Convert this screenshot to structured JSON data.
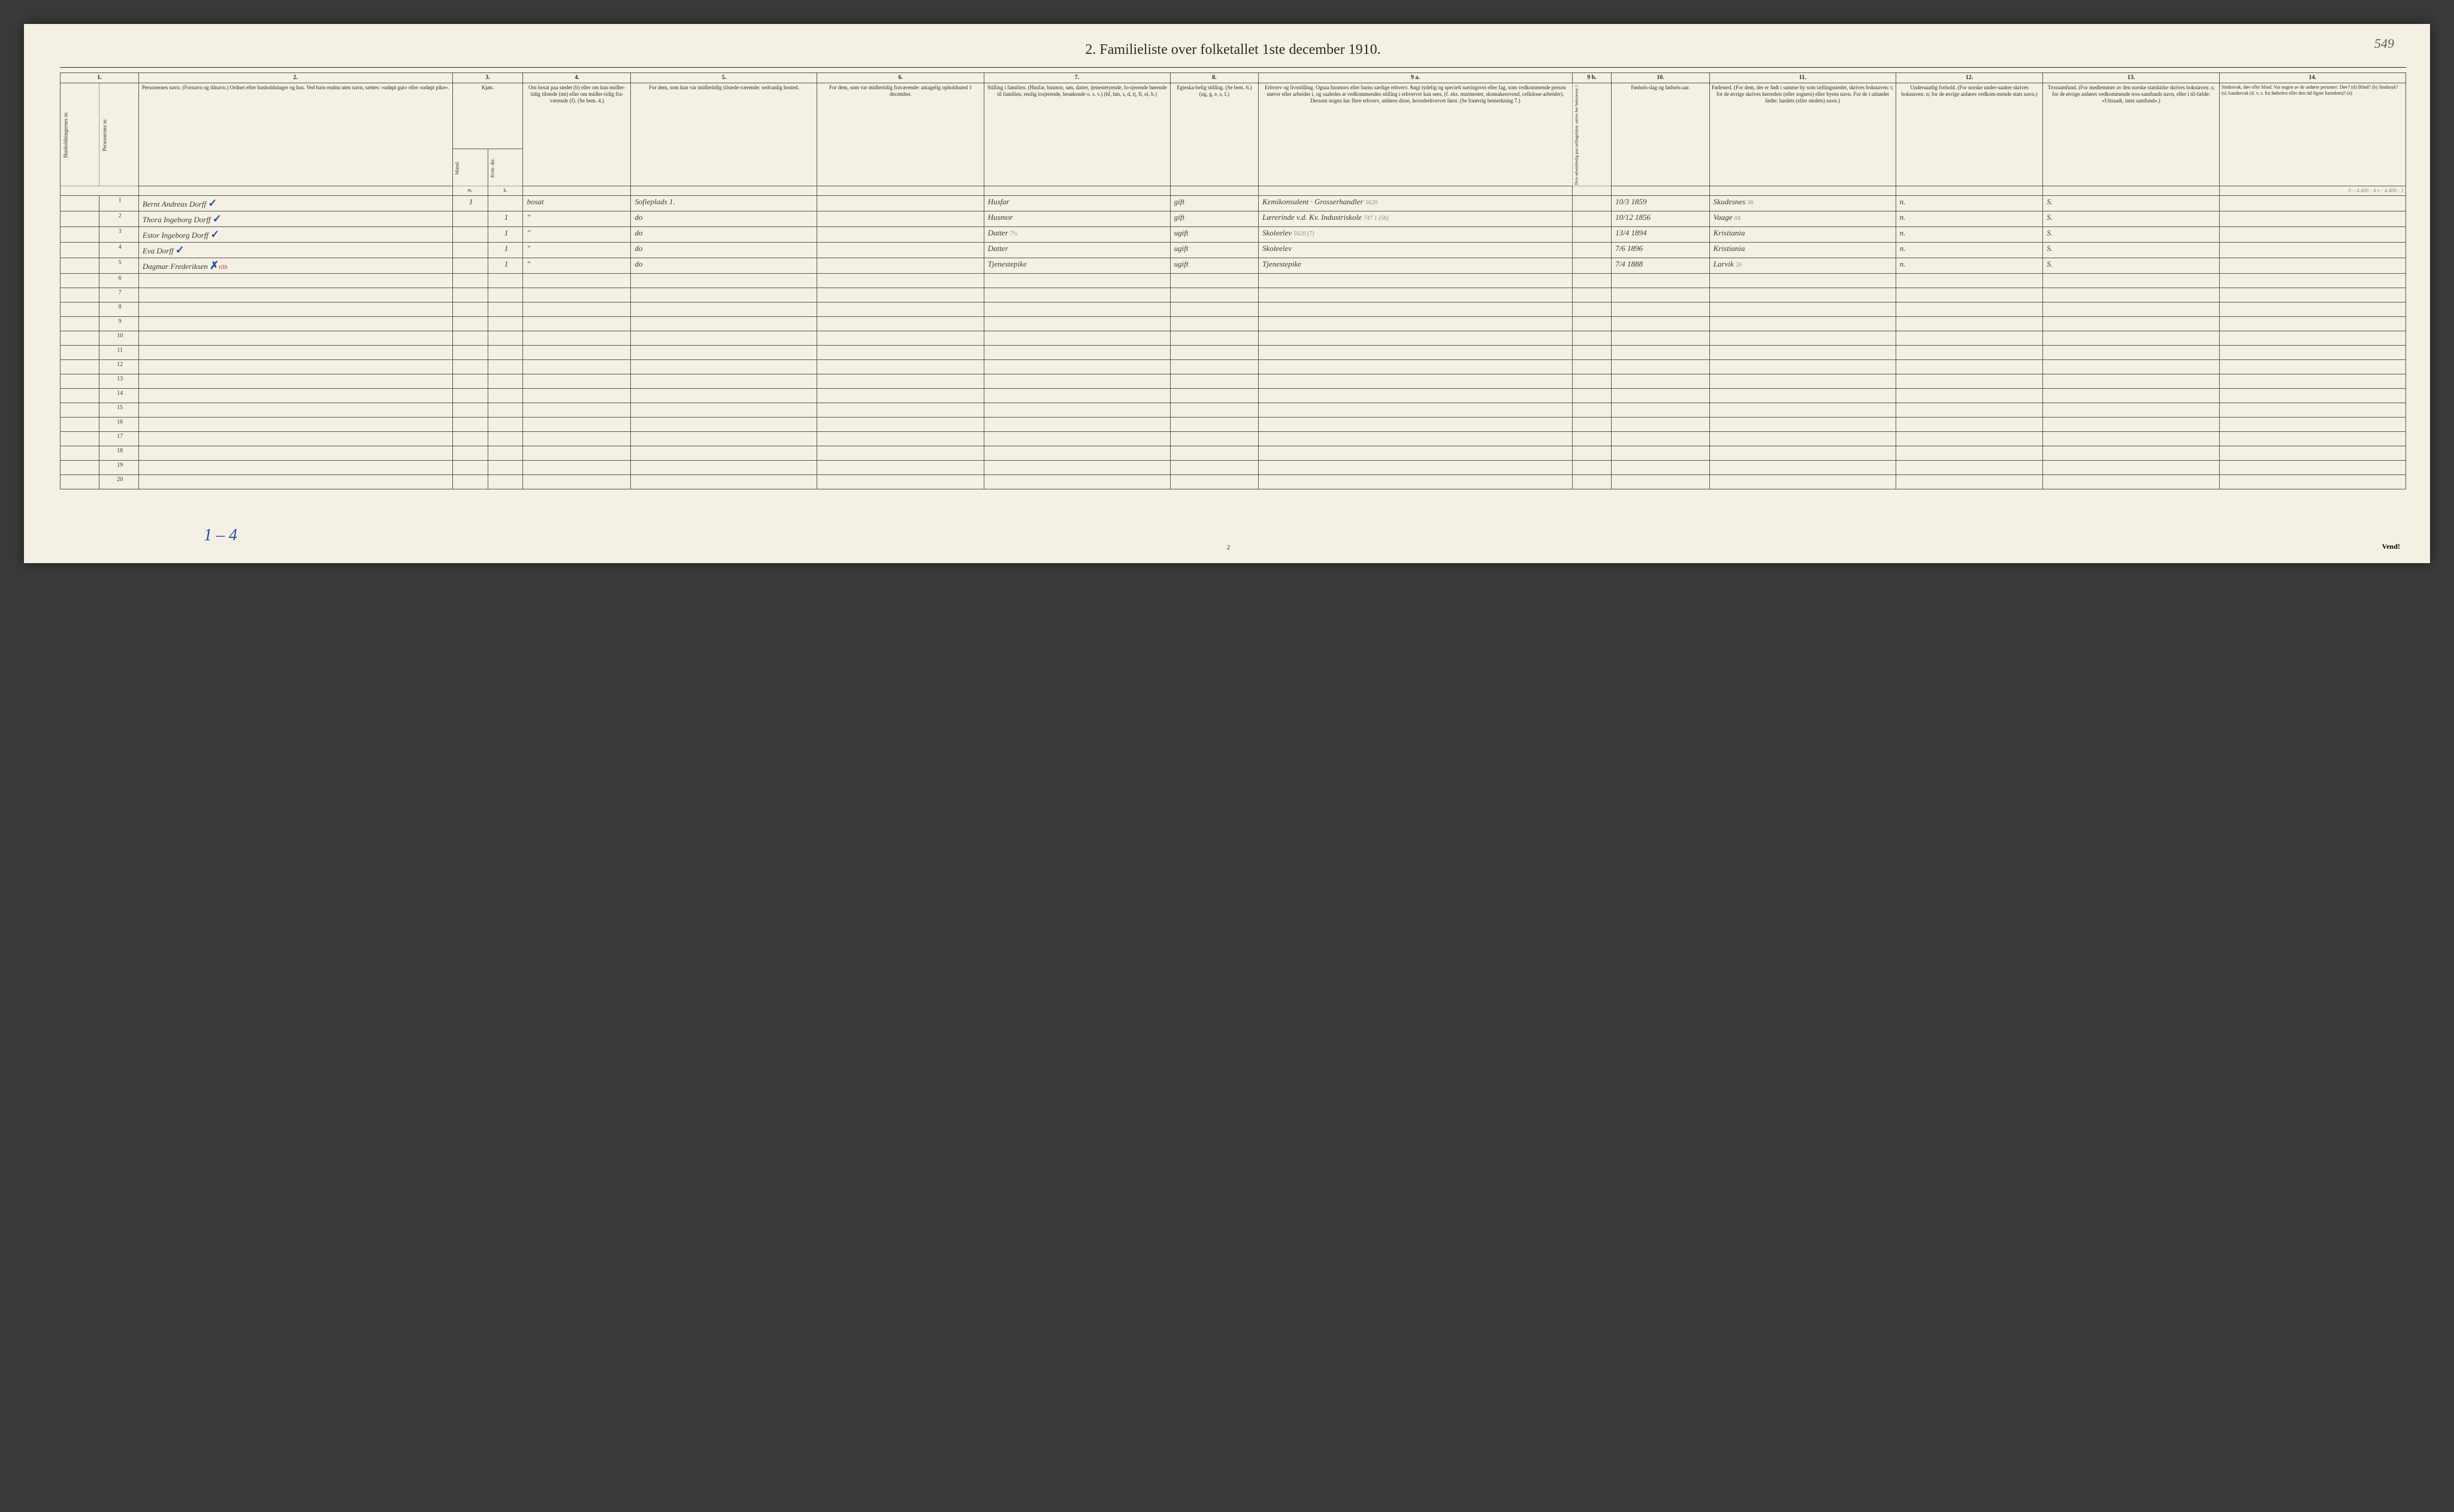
{
  "corner_note": "549",
  "title": "2.  Familieliste over folketallet 1ste december 1910.",
  "bottom_note": "1 – 4",
  "page_num": "2",
  "vend": "Vend!",
  "col_numbers": [
    "1.",
    "2.",
    "3.",
    "4.",
    "5.",
    "6.",
    "7.",
    "8.",
    "9 a.",
    "9 b.",
    "10.",
    "11.",
    "12.",
    "13.",
    "14."
  ],
  "headers": {
    "c2": "Personernes navn.\n(Fornavn og tilnavn.)\nOrdnet efter husholdninger og hus.\nVed barn endnu uten navn, sættes: «udøpt gut» eller «udøpt pike».",
    "c3": "Kjøn.",
    "c3_sub": [
      "Mænd.",
      "Kvin-\nder."
    ],
    "c3_mk": [
      "m.",
      "k."
    ],
    "c4": "Om bosat paa stedet (b) eller om kun midler-tidig tilstede (mt) eller om midler-tidig fra-værende (f). (Se bem. 4.)",
    "c5": "For dem, som kun var midlertidig tilstede-værende:\nsedvanlig bosted.",
    "c6": "For dem, som var midlertidig fraværende:\nantagelig opholdssted 1 december.",
    "c7": "Stilling i familien.\n(Husfar, husmor, søn, datter, tjenestetyende, lo-sjerende hørende til familien, enslig losjerende, besøkende o. s. v.)\n(hf, hm, s, d, tj, fl, el, b.)",
    "c8": "Egteska-belig stilling.\n(Se bem. 6.)\n(ug, g, e, s, f.)",
    "c9": "Erhverv og livsstilling.\nOgsaa husmors eller barns særlige erhverv.\nAngi tydelig og specielt næringsvei eller fag, som vedkommende person utøver eller arbeider i, og saaledes at vedkommendes stilling i erhvervet kan sees, (f. eks. murmester, skomakersvend, cellulose-arbeider). Dersom nogen har flere erhverv, anføres disse, hovederhvervet først.\n(Se forøvrig bemerkning 7.)",
    "c9b": "Hvis arbeidsledig paa tællingstiden, sættes her bokstaven: l.",
    "c10": "Fødsels-dag og fødsels-aar.",
    "c11": "Fødested.\n(For dem, der er født i samme by som tællingsstedet, skrives bokstaven: t; for de øvrige skrives herredets (eller sognets) eller byens navn. For de i utlandet fødte: landets (eller stedets) navn.)",
    "c12": "Undersaatlig forhold.\n(For norske under-saatter skrives bokstaven: n; for de øvrige anføres vedkom-mende stats navn.)",
    "c13": "Trossamfund.\n(For medlemmer av den norske statskirke skrives bokstaven: s; for de øvrige anføres vedkommende tros-samfunds navn, eller i til-fælde: «Uttraadt, intet samfund».)",
    "c14": "Sindssvak, døv eller blind.\nVar nogen av de anførte personer:\nDøv?      (d)\nBlind?    (b)\nSindssyk? (s)\nAandssvak (d. v. s. fra fødselen eller den tid-ligste barndom)? (a)",
    "left_vert": [
      "Husholdningernes nr.",
      "Personernes nr."
    ]
  },
  "margin_notes": {
    "top_right_pencil": "0 – 4.400 · 4\no · 4.400 · 2",
    "row1_pencil": "5620",
    "row2_pencil": "747 1 (56)",
    "row3_pencil": "5620 (7)",
    "c11_1": "36",
    "c11_2": "04",
    "c11_5": "26"
  },
  "rows": [
    {
      "num": "1",
      "name": "Bernt Andreas Dorff",
      "check": "✓",
      "mk": "1",
      "bosat": "bosat",
      "c5": "Sofieplads 1.",
      "c7": "Husfar",
      "c8": "gift",
      "c9": "Kemikonsulent · Grosserhandler",
      "c10": "10/3 1859",
      "c11": "Skudesnes",
      "c12": "n.",
      "c13": "S."
    },
    {
      "num": "2",
      "name": "Thora Ingeborg Dorff",
      "check": "✓",
      "mk_k": "1",
      "bosat": "\"",
      "c5": "do",
      "c7": "Husmor",
      "c8": "gift",
      "c9": "Lærerinde v.d. Kv. Industriskole",
      "c10": "10/12 1856",
      "c11": "Vaage",
      "c12": "n.",
      "c13": "S."
    },
    {
      "num": "3",
      "name": "Estor Ingeborg Dorff",
      "check": "✓",
      "mk_k": "1",
      "bosat": "\"",
      "c5": "do",
      "c7": "Datter",
      "c7_note": "7½",
      "c8": "ugift",
      "c9": "Skoleelev",
      "c10": "13/4 1894",
      "c11": "Kristiania",
      "c12": "n.",
      "c13": "S."
    },
    {
      "num": "4",
      "name": "Eva Dorff",
      "check": "✓",
      "mk_k": "1",
      "bosat": "\"",
      "c5": "do",
      "c7": "Datter",
      "c8": "ugift",
      "c9": "Skoleelev",
      "c10": "7/6 1896",
      "c11": "Kristiania",
      "c12": "n.",
      "c13": "S."
    },
    {
      "num": "5",
      "name": "Dagmar Frederiksen",
      "check": "✗",
      "check_overlay": "tilb",
      "mk_k": "1",
      "bosat": "\"",
      "c5": "do",
      "c7": "Tjenestepike",
      "c8": "ugift",
      "c9": "Tjenestepike",
      "c10": "7/4 1888",
      "c11": "Larvik",
      "c12": "n.",
      "c13": "S."
    }
  ],
  "empty_rows": [
    "6",
    "7",
    "8",
    "9",
    "10",
    "11",
    "12",
    "13",
    "14",
    "15",
    "16",
    "17",
    "18",
    "19",
    "20"
  ]
}
